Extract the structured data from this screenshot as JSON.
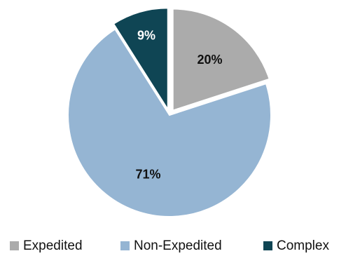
{
  "chart_data": {
    "type": "pie",
    "title": "",
    "categories": [
      "Expedited",
      "Non-Expedited",
      "Complex"
    ],
    "values": [
      20,
      71,
      9
    ],
    "data_labels": [
      "20%",
      "71%",
      "9%"
    ],
    "colors": [
      "#ababab",
      "#95b5d3",
      "#0f4554"
    ],
    "label_colors": [
      "#111111",
      "#111111",
      "#ffffff"
    ],
    "exploded": [
      true,
      false,
      true
    ],
    "start_angle_deg": 0,
    "direction": "clockwise",
    "legend": "bottom"
  }
}
